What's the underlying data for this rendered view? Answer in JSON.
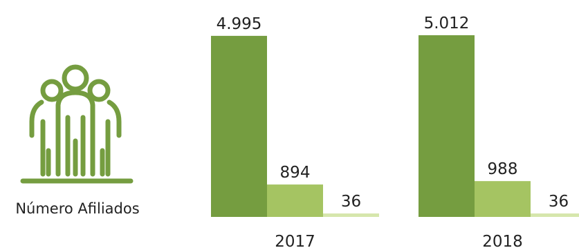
{
  "chart_data": {
    "type": "bar",
    "categories": [
      "2017",
      "2018"
    ],
    "series": [
      {
        "values": [
          4995,
          5012
        ],
        "value_labels": [
          "4.995",
          "5.012"
        ]
      },
      {
        "values": [
          894,
          988
        ],
        "value_labels": [
          "894",
          "988"
        ]
      },
      {
        "values": [
          36,
          36
        ],
        "value_labels": [
          "36",
          "36"
        ]
      }
    ],
    "colors": [
      "#759d40",
      "#a5c462",
      "#d6e6ac"
    ],
    "ylim": [
      0,
      5012
    ],
    "grid": false,
    "legend": "none"
  },
  "figure": {
    "caption": "Número Afiliados",
    "icon": "people-group-icon",
    "icon_color": "#759d40"
  }
}
